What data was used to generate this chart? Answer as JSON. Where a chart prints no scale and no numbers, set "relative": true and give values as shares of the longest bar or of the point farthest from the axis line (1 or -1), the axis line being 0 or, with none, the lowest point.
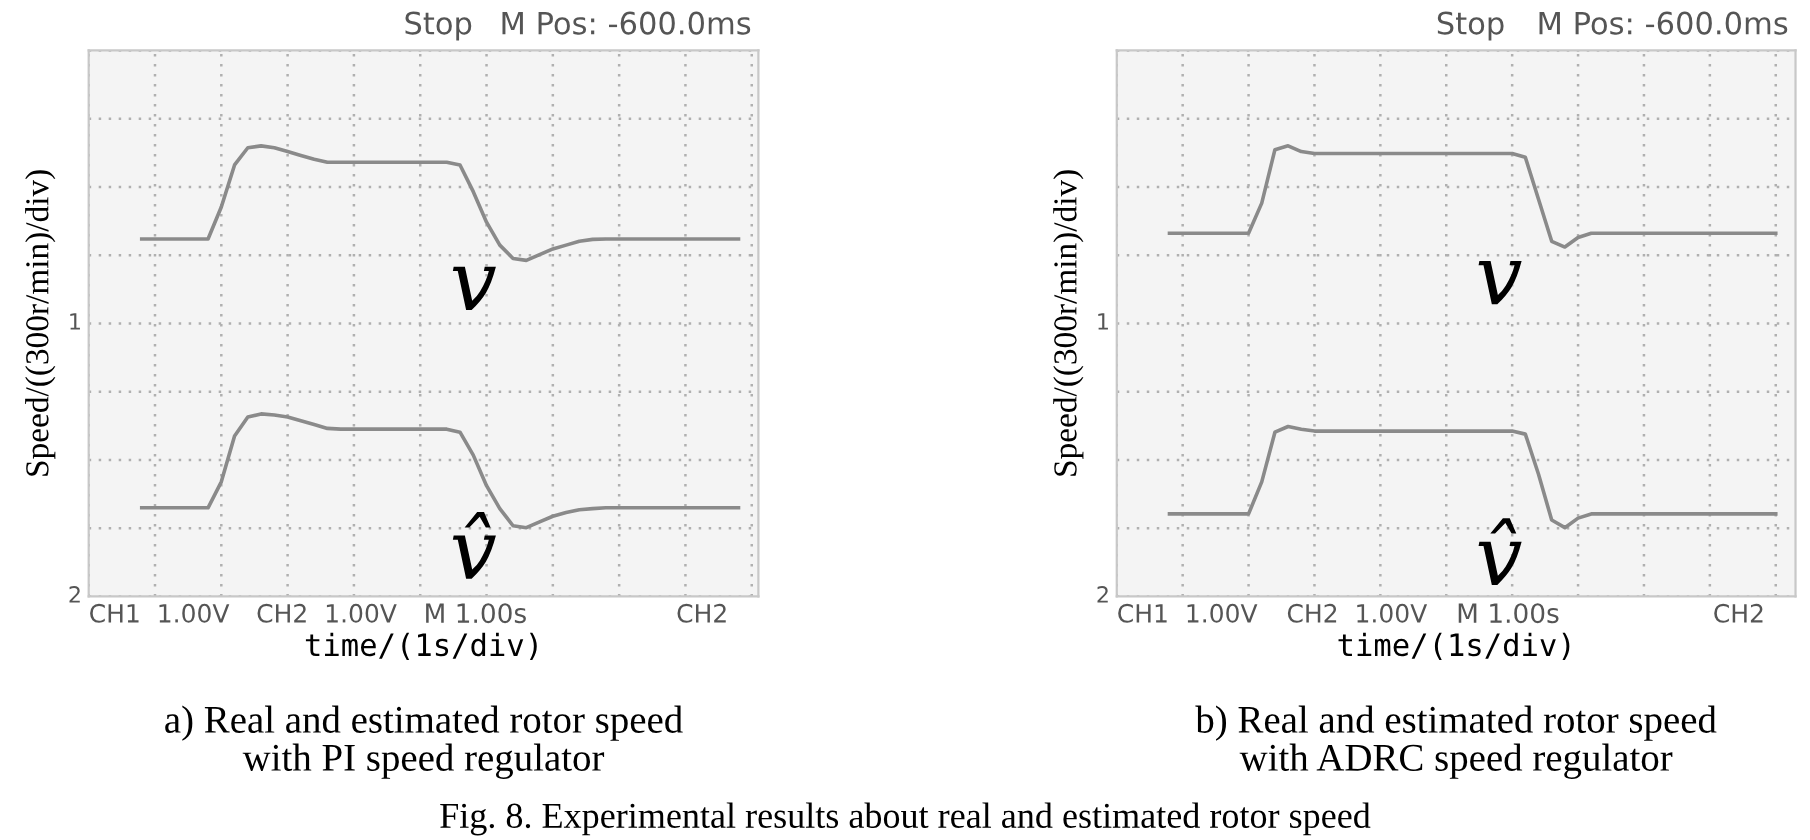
{
  "chart_data": [
    {
      "type": "line",
      "title": "a) Real and estimated rotor speed\nwith PI speed regulator",
      "xlabel": "time/(1s/div)",
      "ylabel": "Speed/((300r/min)/div)",
      "relative": true,
      "grid": true,
      "tick_labels": false,
      "marker": "none",
      "line_style": "solid",
      "categories": [
        null,
        null,
        null,
        null,
        null,
        null,
        null,
        null,
        null,
        null,
        null,
        null,
        null,
        null,
        null,
        null,
        null,
        null,
        null,
        null,
        null,
        null,
        null,
        null,
        null,
        null,
        null,
        null,
        null,
        null,
        null,
        null,
        null,
        null,
        null,
        null,
        null,
        null,
        null,
        null,
        null,
        null,
        null,
        null,
        null,
        null
      ],
      "series": [
        {
          "name": "v",
          "color": "#8a8a8a",
          "values": [
            0.756,
            0.756,
            0.756,
            0.756,
            0.756,
            0.756,
            0.84,
            0.95,
            0.995,
            1.0,
            0.995,
            0.985,
            0.975,
            0.965,
            0.957,
            0.957,
            0.957,
            0.957,
            0.957,
            0.957,
            0.957,
            0.957,
            0.957,
            0.957,
            0.95,
            0.88,
            0.8,
            0.74,
            0.705,
            0.7,
            0.715,
            0.73,
            0.74,
            0.75,
            0.755,
            0.756,
            0.756,
            0.756,
            0.756,
            0.756,
            0.756,
            0.756,
            0.756,
            0.756,
            0.756,
            0.756
          ]
        },
        {
          "name": "v̂",
          "color": "#8a8a8a",
          "values": [
            0.052,
            0.052,
            0.052,
            0.052,
            0.052,
            0.052,
            0.12,
            0.24,
            0.29,
            0.298,
            0.295,
            0.29,
            0.28,
            0.27,
            0.26,
            0.258,
            0.258,
            0.258,
            0.258,
            0.258,
            0.258,
            0.258,
            0.258,
            0.258,
            0.25,
            0.19,
            0.11,
            0.05,
            0.005,
            0.0,
            0.015,
            0.03,
            0.04,
            0.047,
            0.05,
            0.052,
            0.052,
            0.052,
            0.052,
            0.052,
            0.052,
            0.052,
            0.052,
            0.052,
            0.052,
            0.052
          ]
        }
      ],
      "annotations": [
        "Stop",
        "M Pos: -600.0ms",
        "CH1  1.00V",
        "CH2  1.00V",
        "M 1.00s",
        "CH2",
        "1",
        "2",
        "Fig. 8. Experimental results about real and estimated rotor speed"
      ]
    },
    {
      "type": "line",
      "title": "b) Real and estimated rotor speed\nwith ADRC speed regulator",
      "xlabel": "time/(1s/div)",
      "ylabel": "Speed/((300r/min)/div)",
      "relative": true,
      "grid": true,
      "tick_labels": false,
      "marker": "none",
      "line_style": "solid",
      "categories": [
        null,
        null,
        null,
        null,
        null,
        null,
        null,
        null,
        null,
        null,
        null,
        null,
        null,
        null,
        null,
        null,
        null,
        null,
        null,
        null,
        null,
        null,
        null,
        null,
        null,
        null,
        null,
        null,
        null,
        null,
        null,
        null,
        null,
        null,
        null,
        null,
        null,
        null,
        null,
        null,
        null,
        null,
        null,
        null,
        null,
        null,
        null
      ],
      "series": [
        {
          "name": "v",
          "color": "#8a8a8a",
          "values": [
            0.771,
            0.771,
            0.771,
            0.771,
            0.771,
            0.771,
            0.771,
            0.85,
            0.99,
            1.0,
            0.985,
            0.98,
            0.98,
            0.98,
            0.98,
            0.98,
            0.98,
            0.98,
            0.98,
            0.98,
            0.98,
            0.98,
            0.98,
            0.98,
            0.98,
            0.98,
            0.98,
            0.97,
            0.86,
            0.75,
            0.735,
            0.76,
            0.771,
            0.771,
            0.771,
            0.771,
            0.771,
            0.771,
            0.771,
            0.771,
            0.771,
            0.771,
            0.771,
            0.771,
            0.771,
            0.771,
            0.771
          ]
        },
        {
          "name": "v̂",
          "color": "#8a8a8a",
          "values": [
            0.036,
            0.036,
            0.036,
            0.036,
            0.036,
            0.036,
            0.036,
            0.12,
            0.25,
            0.265,
            0.258,
            0.253,
            0.253,
            0.253,
            0.253,
            0.253,
            0.253,
            0.253,
            0.253,
            0.253,
            0.253,
            0.253,
            0.253,
            0.253,
            0.253,
            0.253,
            0.253,
            0.245,
            0.14,
            0.02,
            0.0,
            0.025,
            0.036,
            0.036,
            0.036,
            0.036,
            0.036,
            0.036,
            0.036,
            0.036,
            0.036,
            0.036,
            0.036,
            0.036,
            0.036,
            0.036,
            0.036
          ]
        }
      ],
      "annotations": [
        "Stop",
        "M Pos: -600.0ms",
        "CH1  1.00V",
        "CH2  1.00V",
        "M 1.00s",
        "CH2",
        "1",
        "2"
      ]
    }
  ]
}
